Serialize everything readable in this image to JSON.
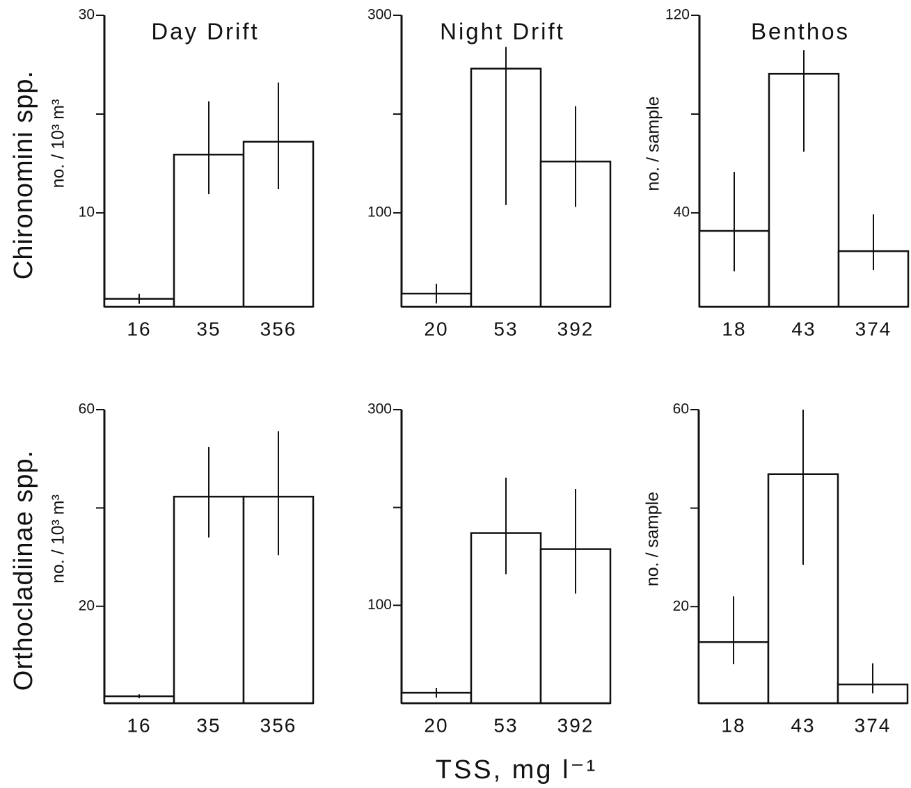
{
  "chart_data": [
    {
      "type": "bar",
      "title": "Day Drift",
      "taxon": "Chironomini spp.",
      "ylabel": "no. / 10³ m³",
      "categories": [
        "16",
        "35",
        "356"
      ],
      "values": [
        1.3,
        15.9,
        17.2
      ],
      "lower": [
        0.8,
        11.9,
        12.4
      ],
      "upper": [
        1.8,
        21.3,
        23.2
      ],
      "ylim": [
        0.5,
        30
      ],
      "yticks": [
        {
          "value": 10,
          "label": "10"
        },
        {
          "value": 20,
          "label": null
        },
        {
          "value": 30,
          "label": "30"
        }
      ]
    },
    {
      "type": "bar",
      "title": "Night Drift",
      "categories": [
        "20",
        "53",
        "392"
      ],
      "values": [
        18.3,
        246,
        152
      ],
      "lower": [
        8.3,
        108,
        106
      ],
      "upper": [
        28.3,
        268,
        208
      ],
      "ylim": [
        5,
        300
      ],
      "yticks": [
        {
          "value": 100,
          "label": "100"
        },
        {
          "value": 200,
          "label": null
        },
        {
          "value": 300,
          "label": "300"
        }
      ]
    },
    {
      "type": "bar",
      "title": "Benthos",
      "ylabel": "no. / sample",
      "categories": [
        "18",
        "43",
        "374"
      ],
      "values": [
        32.7,
        96.3,
        24.5
      ],
      "lower": [
        16.3,
        64.8,
        16.9
      ],
      "upper": [
        56.6,
        105.9,
        39.4
      ],
      "ylim": [
        2,
        120
      ],
      "yticks": [
        {
          "value": 40,
          "label": "40"
        },
        {
          "value": 80,
          "label": null
        },
        {
          "value": 120,
          "label": "120"
        }
      ]
    },
    {
      "type": "bar",
      "taxon": "Orthocladiinae spp.",
      "ylabel": "no. / 10³ m³",
      "categories": [
        "16",
        "35",
        "356"
      ],
      "values": [
        1.7,
        42.3,
        42.3
      ],
      "lower": [
        1.3,
        34.0,
        30.4
      ],
      "upper": [
        2.1,
        52.4,
        55.6
      ],
      "ylim": [
        0.3,
        60
      ],
      "yticks": [
        {
          "value": 20,
          "label": "20"
        },
        {
          "value": 40,
          "label": null
        },
        {
          "value": 60,
          "label": "60"
        }
      ]
    },
    {
      "type": "bar",
      "xlabel": "TSS, mg l⁻¹",
      "categories": [
        "20",
        "53",
        "392"
      ],
      "values": [
        10.6,
        173.8,
        157.4
      ],
      "lower": [
        5.6,
        131.9,
        112
      ],
      "upper": [
        15.6,
        230.5,
        219
      ],
      "ylim": [
        0,
        300
      ],
      "yticks": [
        {
          "value": 100,
          "label": "100"
        },
        {
          "value": 200,
          "label": null
        },
        {
          "value": 300,
          "label": "300"
        }
      ]
    },
    {
      "type": "bar",
      "ylabel": "no. / sample",
      "categories": [
        "18",
        "43",
        "374"
      ],
      "values": [
        12.8,
        46.9,
        4.2
      ],
      "lower": [
        8.3,
        28.5,
        2.4
      ],
      "upper": [
        22.1,
        60.0,
        8.5
      ],
      "ylim": [
        0.4,
        60
      ],
      "yticks": [
        {
          "value": 20,
          "label": "20"
        },
        {
          "value": 40,
          "label": null
        },
        {
          "value": 60,
          "label": "60"
        }
      ]
    }
  ]
}
